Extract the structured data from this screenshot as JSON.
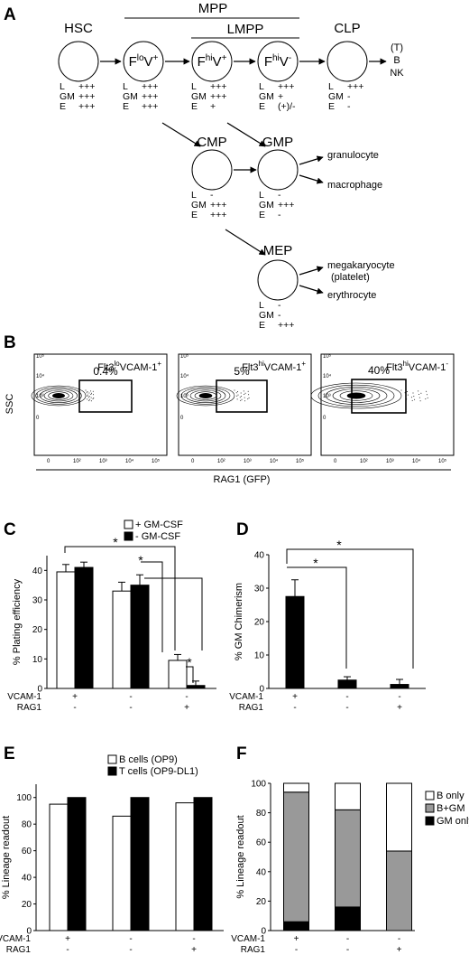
{
  "panel_a": {
    "letter": "A",
    "brackets": {
      "mpp": "MPP",
      "lmpp": "LMPP"
    },
    "nodes": {
      "hsc": {
        "title": "HSC",
        "lineage": [
          [
            "L",
            "+++"
          ],
          [
            "GM",
            "+++"
          ],
          [
            "E",
            "+++"
          ]
        ]
      },
      "flo": {
        "main": "F",
        "sup1": "lo",
        "v": "V",
        "sup2": "+",
        "lineage": [
          [
            "L",
            "+++"
          ],
          [
            "GM",
            "+++"
          ],
          [
            "E",
            "+++"
          ]
        ]
      },
      "fhivp": {
        "main": "F",
        "sup1": "hi",
        "v": "V",
        "sup2": "+",
        "lineage": [
          [
            "L",
            "+++"
          ],
          [
            "GM",
            "+++"
          ],
          [
            "E",
            "+"
          ]
        ]
      },
      "fhivm": {
        "main": "F",
        "sup1": "hi",
        "v": "V",
        "sup2": "-",
        "lineage": [
          [
            "L",
            "+++"
          ],
          [
            "GM",
            "+"
          ],
          [
            "E",
            "(+)/-"
          ]
        ]
      },
      "clp": {
        "title": "CLP",
        "lineage": [
          [
            "L",
            "+++"
          ],
          [
            "GM",
            "-"
          ],
          [
            "E",
            "-"
          ]
        ]
      },
      "cmp": {
        "title": "CMP",
        "lineage": [
          [
            "L",
            "-"
          ],
          [
            "GM",
            "+++"
          ],
          [
            "E",
            "+++"
          ]
        ]
      },
      "gmp": {
        "title": "GMP",
        "lineage": [
          [
            "L",
            "-"
          ],
          [
            "GM",
            "+++"
          ],
          [
            "E",
            "-"
          ]
        ]
      },
      "mep": {
        "title": "MEP",
        "lineage": [
          [
            "L",
            "-"
          ],
          [
            "GM",
            "-"
          ],
          [
            "E",
            "+++"
          ]
        ]
      }
    },
    "clp_outputs": [
      "(T)",
      "B",
      "NK"
    ],
    "gmp_outputs": [
      "granulocyte",
      "macrophage"
    ],
    "mep_outputs": [
      "megakaryocyte",
      "(platelet)",
      "erythrocyte"
    ]
  },
  "panel_b": {
    "letter": "B",
    "y_axis_label": "SSC",
    "x_axis_label": "RAG1 (GFP)",
    "tick_labels": [
      "0",
      "10²",
      "10³",
      "10⁴",
      "10⁵"
    ],
    "plots": [
      {
        "base": "Flt3",
        "sup1": "lo",
        "mid": "VCAM-1",
        "sup2": "+",
        "gate_percent": "0.4%"
      },
      {
        "base": "Flt3",
        "sup1": "hi",
        "mid": "VCAM-1",
        "sup2": "+",
        "gate_percent": "5%"
      },
      {
        "base": "Flt3",
        "sup1": "hi",
        "mid": "VCAM-1",
        "sup2": "-",
        "gate_percent": "40%"
      }
    ]
  },
  "chart_data": [
    {
      "panel": "C",
      "type": "bar",
      "ylabel": "% Plating efficiency",
      "ylim": [
        0,
        45
      ],
      "yticks": [
        0,
        10,
        20,
        30,
        40
      ],
      "row_labels": [
        "VCAM-1",
        "RAG1"
      ],
      "categories": [
        [
          "+",
          "-"
        ],
        [
          "-",
          "-"
        ],
        [
          "-",
          "+"
        ]
      ],
      "series": [
        {
          "name": "+ GM-CSF",
          "color": "#ffffff",
          "values": [
            39.5,
            33,
            9.5
          ],
          "errors": [
            2.5,
            3,
            2
          ]
        },
        {
          "name": "- GM-CSF",
          "color": "#000000",
          "values": [
            41,
            35,
            1
          ],
          "errors": [
            1.8,
            3.5,
            1.5
          ]
        }
      ],
      "significance": [
        "*",
        "*",
        "*"
      ]
    },
    {
      "panel": "D",
      "type": "bar",
      "ylabel": "% GM Chimerism",
      "ylim": [
        0,
        40
      ],
      "yticks": [
        0,
        10,
        20,
        30,
        40
      ],
      "row_labels": [
        "VCAM-1",
        "RAG1"
      ],
      "categories": [
        [
          "+",
          "-"
        ],
        [
          "-",
          "-"
        ],
        [
          "-",
          "+"
        ]
      ],
      "series": [
        {
          "color": "#000000",
          "values": [
            27.5,
            2.5,
            1.2
          ],
          "errors": [
            5,
            1,
            1.5
          ]
        }
      ],
      "significance": [
        "*",
        "*"
      ]
    },
    {
      "panel": "E",
      "type": "bar",
      "ylabel": "% Lineage readout",
      "ylim": [
        0,
        110
      ],
      "yticks": [
        0,
        20,
        40,
        60,
        80,
        100
      ],
      "row_labels": [
        "VCAM-1",
        "RAG1"
      ],
      "categories": [
        [
          "+",
          "-"
        ],
        [
          "-",
          "-"
        ],
        [
          "-",
          "+"
        ]
      ],
      "series": [
        {
          "name": "B cells (OP9)",
          "color": "#ffffff",
          "values": [
            95,
            86,
            96
          ]
        },
        {
          "name": "T cells (OP9-DL1)",
          "color": "#000000",
          "values": [
            100,
            100,
            100
          ]
        }
      ]
    },
    {
      "panel": "F",
      "type": "bar",
      "stacked": true,
      "ylabel": "% Lineage readout",
      "ylim": [
        0,
        100
      ],
      "yticks": [
        0,
        20,
        40,
        60,
        80,
        100
      ],
      "row_labels": [
        "VCAM-1",
        "RAG1"
      ],
      "categories": [
        [
          "+",
          "-"
        ],
        [
          "-",
          "-"
        ],
        [
          "-",
          "+"
        ]
      ],
      "series": [
        {
          "name": "GM only",
          "color": "#000000",
          "values": [
            6,
            16,
            0
          ]
        },
        {
          "name": "B+GM",
          "color": "#999999",
          "values": [
            88,
            66,
            54
          ]
        },
        {
          "name": "B only",
          "color": "#ffffff",
          "values": [
            6,
            18,
            46
          ]
        }
      ],
      "legend_order": [
        "B only",
        "B+GM",
        "GM only"
      ]
    }
  ]
}
